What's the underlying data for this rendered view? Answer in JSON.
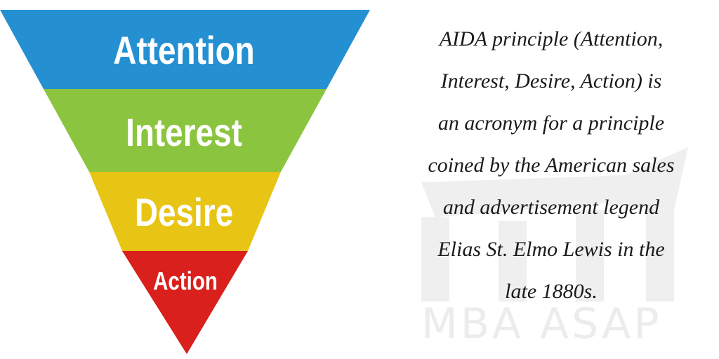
{
  "funnel": {
    "stages": [
      {
        "label": "Attention",
        "color": "#2490d2"
      },
      {
        "label": "Interest",
        "color": "#8bc43f"
      },
      {
        "label": "Desire",
        "color": "#e8c414"
      },
      {
        "label": "Action",
        "color": "#d9201c"
      }
    ]
  },
  "description": {
    "lines": [
      "AIDA principle (Attention,",
      "Interest, Desire, Action) is",
      "an acronym for a principle",
      "coined by the American sales",
      "and advertisement legend",
      "Elias St. Elmo Lewis in the",
      "late 1880s."
    ]
  },
  "watermark": {
    "text": "MBA ASAP"
  }
}
